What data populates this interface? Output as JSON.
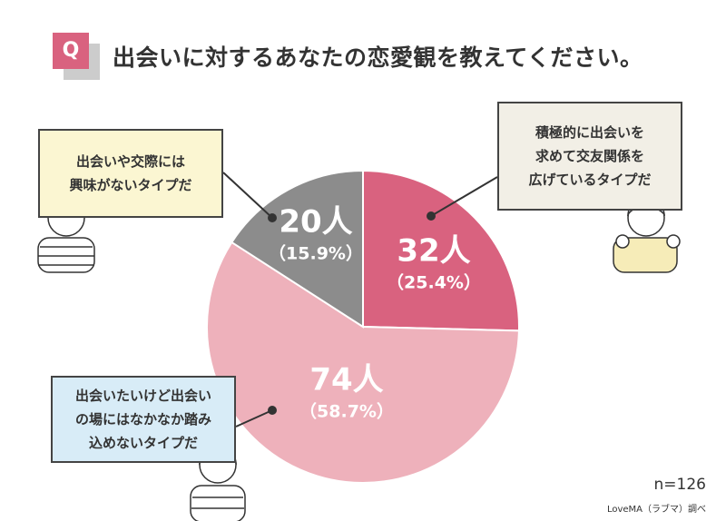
{
  "question": {
    "badge": "Q",
    "title": "出会いに対するあなたの恋愛観を教えてください。"
  },
  "chart_data": {
    "type": "pie",
    "start": "12 o'clock clockwise",
    "slices": [
      {
        "label": "積極的に出会いを求めて交友関係を広げているタイプだ",
        "count": "32人",
        "percent": "（25.4%）",
        "value": 25.4,
        "color": "#d9627f"
      },
      {
        "label": "出会いたいけど出会いの場にはなかなか踏み込めないタイプだ",
        "count": "74人",
        "percent": "（58.7%）",
        "value": 58.7,
        "color": "#eeb1bb"
      },
      {
        "label": "出会いや交際には興味がないタイプだ",
        "count": "20人",
        "percent": "（15.9%）",
        "value": 15.9,
        "color": "#8c8c8c"
      }
    ]
  },
  "callouts": {
    "active": [
      "積極的に出会いを",
      "求めて交友関係を",
      "広げているタイプだ"
    ],
    "hesitant": [
      "出会いたいけど出会い",
      "の場にはなかなか踏み",
      "込めないタイプだ"
    ],
    "uninterested": [
      "出会いや交際には",
      "興味がないタイプだ"
    ]
  },
  "n": "n=126",
  "source": "LoveMA（ラブマ）調べ"
}
